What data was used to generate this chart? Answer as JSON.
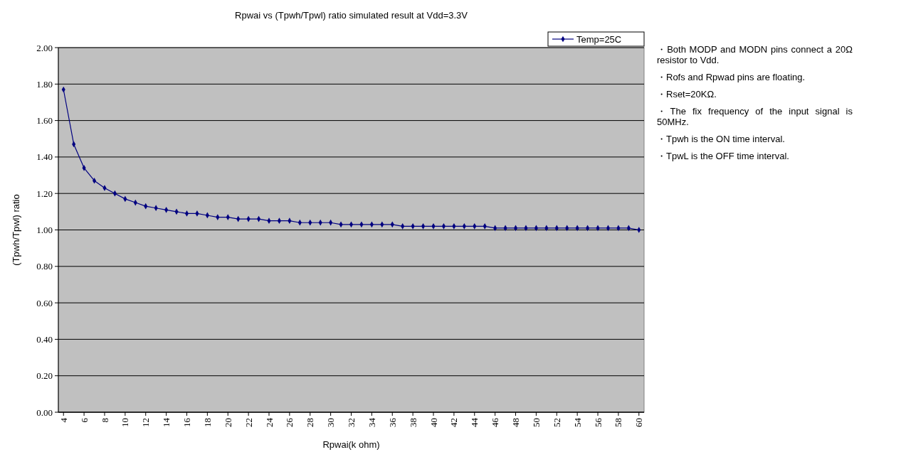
{
  "chart_data": {
    "type": "line",
    "title": "Rpwai vs (Tpwh/Tpwl) ratio simulated result at Vdd=3.3V",
    "xlabel": "Rpwai(k ohm)",
    "ylabel": "(Tpwh/Tpwl) ratio",
    "x": [
      4,
      5,
      6,
      7,
      8,
      9,
      10,
      11,
      12,
      13,
      14,
      15,
      16,
      17,
      18,
      19,
      20,
      21,
      22,
      23,
      24,
      25,
      26,
      27,
      28,
      29,
      30,
      31,
      32,
      33,
      34,
      35,
      36,
      37,
      38,
      39,
      40,
      41,
      42,
      43,
      44,
      45,
      46,
      47,
      48,
      49,
      50,
      51,
      52,
      53,
      54,
      55,
      56,
      57,
      58,
      59,
      60
    ],
    "series": [
      {
        "name": "Temp=25C",
        "color": "#000080",
        "values": [
          1.77,
          1.47,
          1.34,
          1.27,
          1.23,
          1.2,
          1.17,
          1.15,
          1.13,
          1.12,
          1.11,
          1.1,
          1.09,
          1.09,
          1.08,
          1.07,
          1.07,
          1.06,
          1.06,
          1.06,
          1.05,
          1.05,
          1.05,
          1.04,
          1.04,
          1.04,
          1.04,
          1.03,
          1.03,
          1.03,
          1.03,
          1.03,
          1.03,
          1.02,
          1.02,
          1.02,
          1.02,
          1.02,
          1.02,
          1.02,
          1.02,
          1.02,
          1.01,
          1.01,
          1.01,
          1.01,
          1.01,
          1.01,
          1.01,
          1.01,
          1.01,
          1.01,
          1.01,
          1.01,
          1.01,
          1.01,
          1.0
        ]
      }
    ],
    "xlim": [
      3.5,
      60.5
    ],
    "xticks": [
      4,
      6,
      8,
      10,
      12,
      14,
      16,
      18,
      20,
      22,
      24,
      26,
      28,
      30,
      32,
      34,
      36,
      38,
      40,
      42,
      44,
      46,
      48,
      50,
      52,
      54,
      56,
      58,
      60
    ],
    "ylim": [
      0,
      2
    ],
    "yticks": [
      {
        "value": 0,
        "label": "0.00"
      },
      {
        "value": 0.2,
        "label": "0.20"
      },
      {
        "value": 0.4,
        "label": "0.40"
      },
      {
        "value": 0.6,
        "label": "0.60"
      },
      {
        "value": 0.8,
        "label": "0.80"
      },
      {
        "value": 1,
        "label": "1.00"
      },
      {
        "value": 1.2,
        "label": "1.20"
      },
      {
        "value": 1.4,
        "label": "1.40"
      },
      {
        "value": 1.6,
        "label": "1.60"
      },
      {
        "value": 1.8,
        "label": "1.80"
      },
      {
        "value": 2,
        "label": "2.00"
      }
    ],
    "grid": "y",
    "legend": "top right",
    "marker": "diamond",
    "line_style": "solid",
    "annotations": [
      "・Both MODP and MODN pins connect a 20Ω resistor to Vdd.",
      "・Rofs and Rpwad pins are floating.",
      "・Rset=20KΩ.",
      "・The fix frequency of the input signal is 50MHz.",
      "・Tpwh is the ON time interval.",
      "・TpwL is the OFF time interval."
    ]
  }
}
